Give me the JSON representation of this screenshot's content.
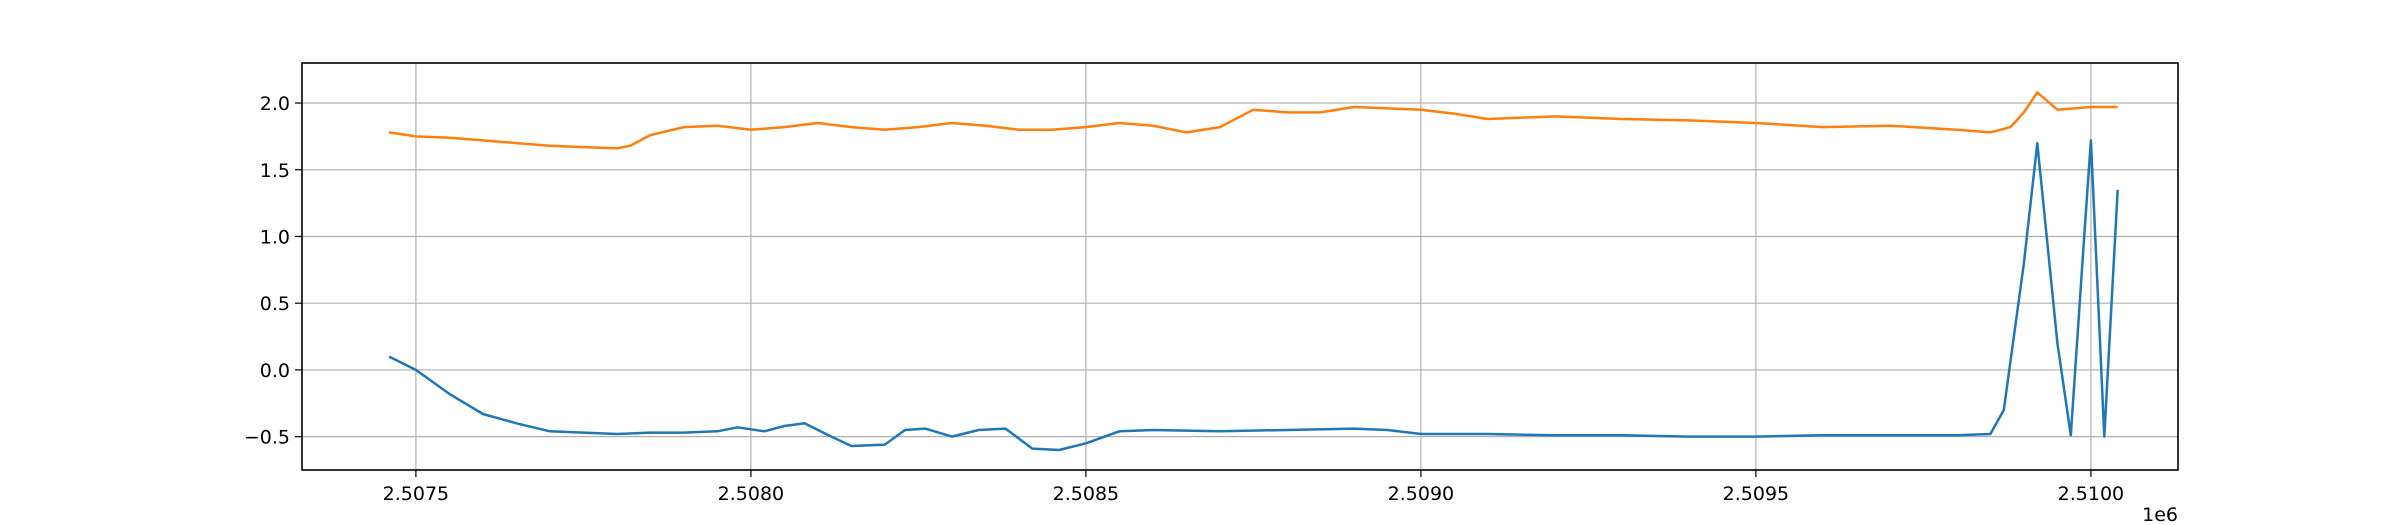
{
  "chart_data": {
    "type": "line",
    "title": "",
    "xlabel": "",
    "ylabel": "",
    "x_offset_label": "1e6",
    "xlim": [
      2.50733,
      2.51013
    ],
    "ylim": [
      -0.75,
      2.3
    ],
    "grid": true,
    "legend": "none",
    "x_ticks": [
      {
        "value": 2.5075,
        "label": "2.5075"
      },
      {
        "value": 2.508,
        "label": "2.5080"
      },
      {
        "value": 2.5085,
        "label": "2.5085"
      },
      {
        "value": 2.509,
        "label": "2.5090"
      },
      {
        "value": 2.5095,
        "label": "2.5095"
      },
      {
        "value": 2.51,
        "label": "2.5100"
      }
    ],
    "y_ticks": [
      {
        "value": 2.0,
        "label": "2.0"
      },
      {
        "value": 1.5,
        "label": "1.5"
      },
      {
        "value": 1.0,
        "label": "1.0"
      },
      {
        "value": 0.5,
        "label": "0.5"
      },
      {
        "value": 0.0,
        "label": "0.0"
      },
      {
        "value": -0.5,
        "label": "−0.5"
      }
    ],
    "series": [
      {
        "color": "#1f77b4",
        "x": [
          2.50746,
          2.5075,
          2.50755,
          2.5076,
          2.50765,
          2.5077,
          2.50775,
          2.5078,
          2.50785,
          2.5079,
          2.50795,
          2.50798,
          2.50802,
          2.50805,
          2.50808,
          2.50812,
          2.50815,
          2.5082,
          2.50823,
          2.50826,
          2.5083,
          2.50834,
          2.50838,
          2.50842,
          2.50846,
          2.5085,
          2.50855,
          2.5086,
          2.5087,
          2.5088,
          2.5089,
          2.50895,
          2.509,
          2.5091,
          2.5092,
          2.5093,
          2.5094,
          2.5095,
          2.5096,
          2.5097,
          2.5098,
          2.50985,
          2.50987,
          2.5099,
          2.50992,
          2.50995,
          2.50997,
          2.50999,
          2.51,
          2.51002,
          2.51004
        ],
        "y": [
          0.1,
          0.0,
          -0.18,
          -0.33,
          -0.4,
          -0.46,
          -0.47,
          -0.48,
          -0.47,
          -0.47,
          -0.46,
          -0.43,
          -0.46,
          -0.42,
          -0.4,
          -0.5,
          -0.57,
          -0.56,
          -0.45,
          -0.44,
          -0.5,
          -0.45,
          -0.44,
          -0.59,
          -0.6,
          -0.55,
          -0.46,
          -0.45,
          -0.46,
          -0.45,
          -0.44,
          -0.45,
          -0.48,
          -0.48,
          -0.49,
          -0.49,
          -0.5,
          -0.5,
          -0.49,
          -0.49,
          -0.49,
          -0.48,
          -0.3,
          0.8,
          1.7,
          0.2,
          -0.49,
          1.0,
          1.72,
          -0.5,
          1.35
        ]
      },
      {
        "color": "#ff7f0e",
        "x": [
          2.50746,
          2.5075,
          2.50755,
          2.5076,
          2.50765,
          2.5077,
          2.50775,
          2.5078,
          2.50782,
          2.50785,
          2.5079,
          2.50795,
          2.508,
          2.50805,
          2.5081,
          2.50815,
          2.5082,
          2.50825,
          2.5083,
          2.50835,
          2.5084,
          2.50845,
          2.5085,
          2.50855,
          2.5086,
          2.50865,
          2.5087,
          2.50875,
          2.5088,
          2.50885,
          2.5089,
          2.50895,
          2.509,
          2.50905,
          2.5091,
          2.5092,
          2.5093,
          2.5094,
          2.5095,
          2.5096,
          2.5097,
          2.5098,
          2.50985,
          2.50988,
          2.5099,
          2.50992,
          2.50995,
          2.51,
          2.51004
        ],
        "y": [
          1.78,
          1.75,
          1.74,
          1.72,
          1.7,
          1.68,
          1.67,
          1.66,
          1.68,
          1.76,
          1.82,
          1.83,
          1.8,
          1.82,
          1.85,
          1.82,
          1.8,
          1.82,
          1.85,
          1.83,
          1.8,
          1.8,
          1.82,
          1.85,
          1.83,
          1.78,
          1.82,
          1.95,
          1.93,
          1.93,
          1.97,
          1.96,
          1.95,
          1.92,
          1.88,
          1.9,
          1.88,
          1.87,
          1.85,
          1.82,
          1.83,
          1.8,
          1.78,
          1.82,
          1.93,
          2.08,
          1.95,
          1.97,
          1.97
        ]
      }
    ]
  }
}
